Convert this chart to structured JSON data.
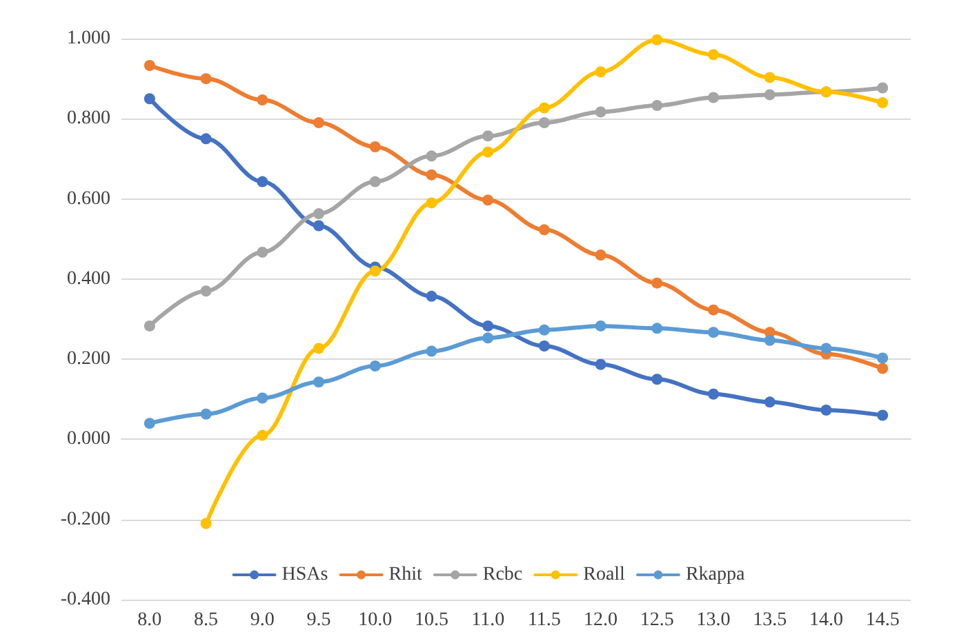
{
  "chart_data": {
    "type": "line",
    "categories": [
      "8.0",
      "8.5",
      "9.0",
      "9.5",
      "10.0",
      "10.5",
      "11.0",
      "11.5",
      "12.0",
      "12.5",
      "13.0",
      "13.5",
      "14.0",
      "14.5"
    ],
    "series": [
      {
        "name": "HSAs",
        "color": "#4472c4",
        "values": [
          0.85,
          0.75,
          0.643,
          0.533,
          0.43,
          0.357,
          0.283,
          0.233,
          0.187,
          0.15,
          0.113,
          0.093,
          0.073,
          0.06
        ]
      },
      {
        "name": "Rhit",
        "color": "#ed7d31",
        "values": [
          0.933,
          0.9,
          0.847,
          0.79,
          0.73,
          0.66,
          0.597,
          0.523,
          0.46,
          0.39,
          0.323,
          0.267,
          0.213,
          0.177
        ]
      },
      {
        "name": "Rcbc",
        "color": "#a5a5a5",
        "values": [
          0.283,
          0.37,
          0.467,
          0.563,
          0.643,
          0.707,
          0.757,
          0.79,
          0.817,
          0.833,
          0.853,
          0.86,
          0.867,
          0.877
        ]
      },
      {
        "name": "Roall",
        "color": "#ffc000",
        "values": [
          null,
          -0.21,
          0.01,
          0.227,
          0.42,
          0.59,
          0.717,
          0.827,
          0.917,
          0.997,
          0.96,
          0.903,
          0.867,
          0.84
        ]
      },
      {
        "name": "Rkappa",
        "color": "#5b9bd5",
        "values": [
          0.04,
          0.063,
          0.103,
          0.143,
          0.183,
          0.22,
          0.253,
          0.273,
          0.283,
          0.277,
          0.267,
          0.247,
          0.227,
          0.203
        ]
      }
    ],
    "ylim": [
      -0.4,
      1.0
    ],
    "yticks": [
      {
        "value": -0.4,
        "label": "-0.400"
      },
      {
        "value": -0.2,
        "label": "-0.200"
      },
      {
        "value": 0,
        "label": "0.000"
      },
      {
        "value": 0.2,
        "label": "0.200"
      },
      {
        "value": 0.4,
        "label": "0.400"
      },
      {
        "value": 0.6,
        "label": "0.600"
      },
      {
        "value": 0.8,
        "label": "0.800"
      },
      {
        "value": 1.0,
        "label": "1.000"
      }
    ],
    "grid": "y",
    "legend": "bottom",
    "marker": "circle",
    "line_style": "solid"
  }
}
